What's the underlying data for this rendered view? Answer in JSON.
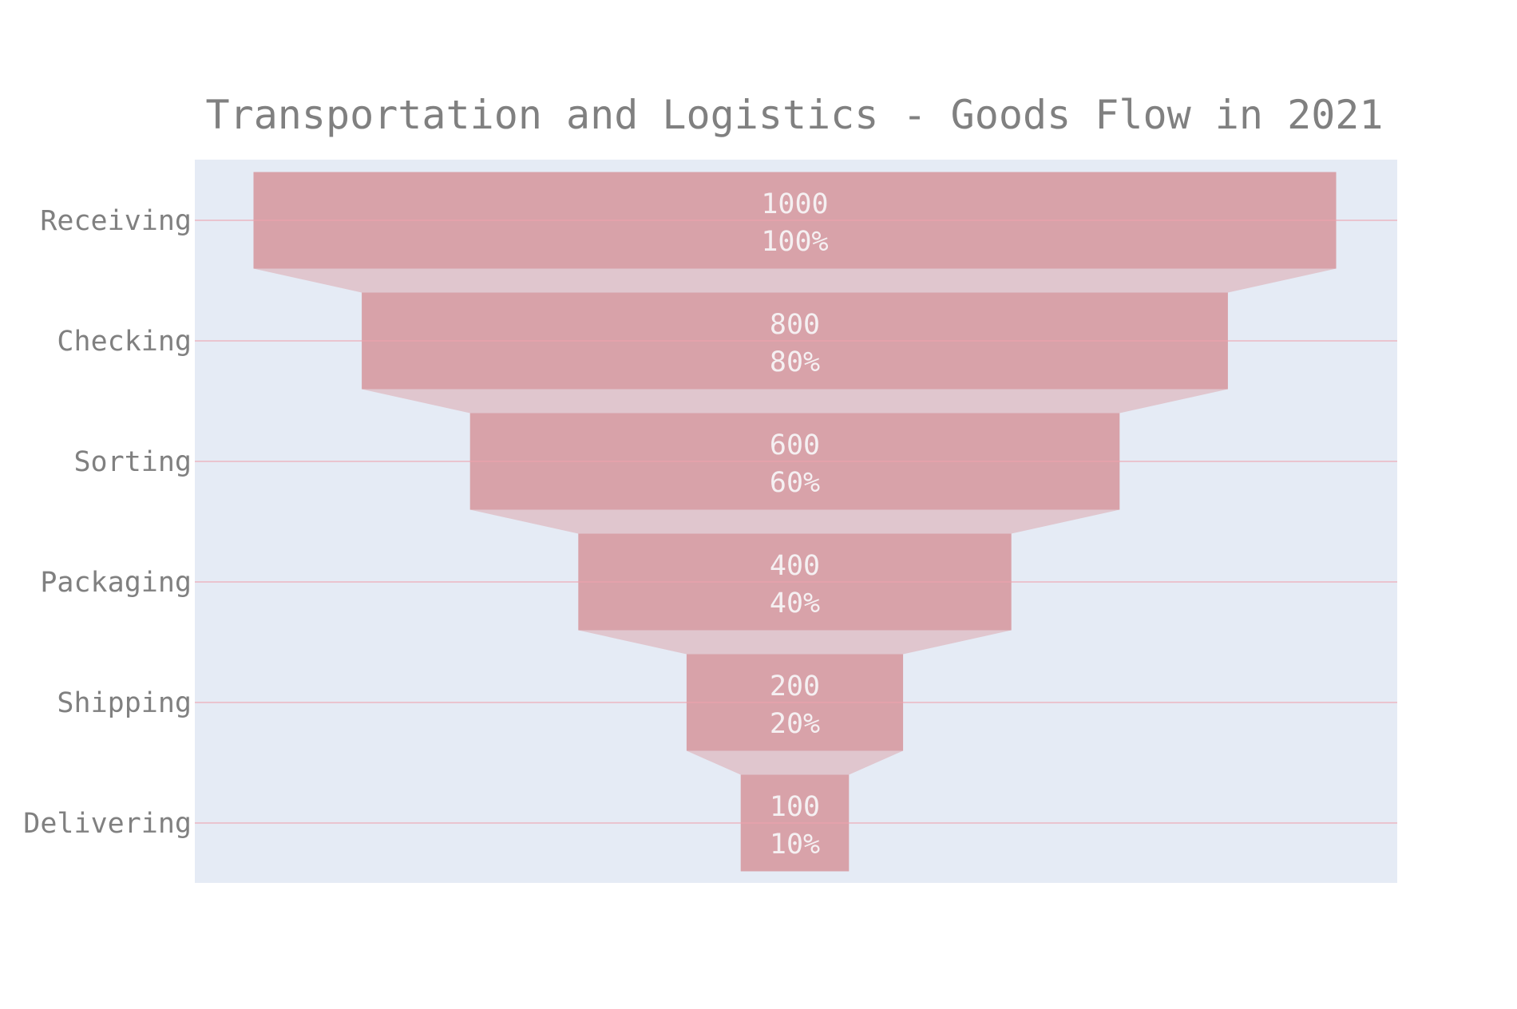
{
  "chart_data": {
    "type": "funnel",
    "title": "Transportation and Logistics - Goods Flow in 2021",
    "categories": [
      "Receiving",
      "Checking",
      "Sorting",
      "Packaging",
      "Shipping",
      "Delivering"
    ],
    "values": [
      1000,
      800,
      600,
      400,
      200,
      100
    ],
    "percent_labels": [
      "100%",
      "80%",
      "60%",
      "40%",
      "20%",
      "10%"
    ],
    "value_labels": [
      "1000",
      "800",
      "600",
      "400",
      "200",
      "100"
    ],
    "grid": true,
    "legend": "none",
    "colors": {
      "bar": "#d8a2a9",
      "connector": "#e0c6ce",
      "plot_background": "#e5ebf5",
      "gridline": "#f0a2ae",
      "title_text": "#808080",
      "axis_text": "#808080",
      "bar_text": "#f5f0f2"
    }
  }
}
